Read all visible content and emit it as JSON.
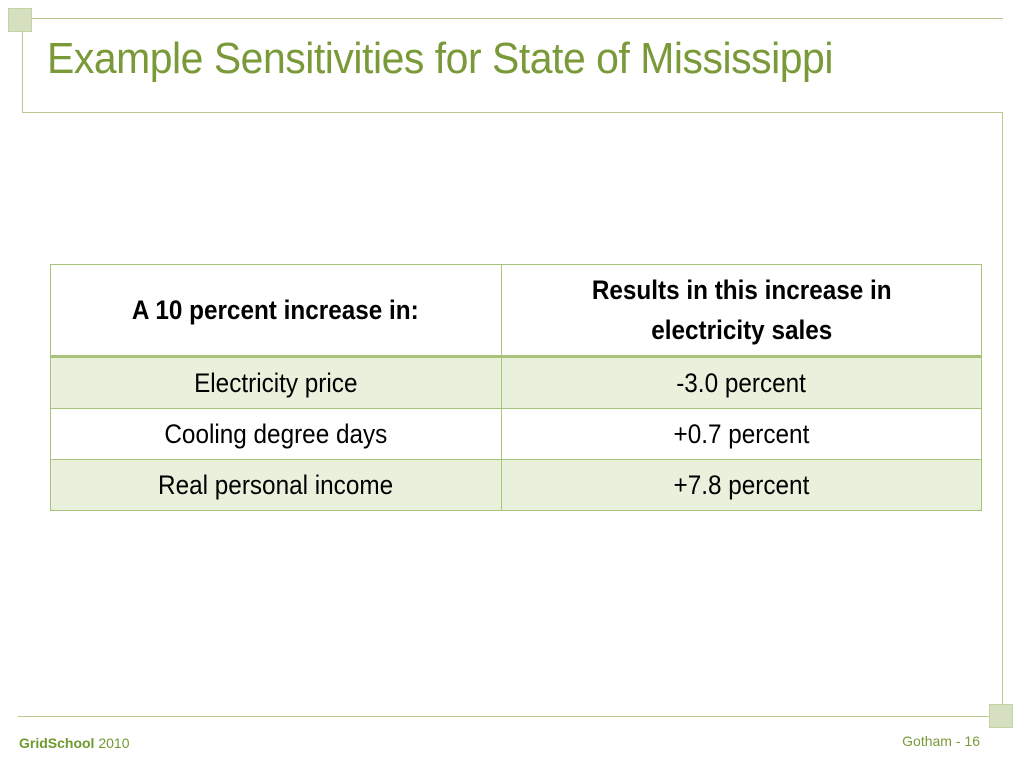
{
  "slide": {
    "title": "Example Sensitivities for State of Mississippi"
  },
  "table": {
    "headers": [
      "A 10 percent increase in:",
      "Results in this increase in electricity sales"
    ],
    "rows": [
      [
        "Electricity price",
        "-3.0 percent"
      ],
      [
        "Cooling degree days",
        "+0.7 percent"
      ],
      [
        "Real personal income",
        "+7.8 percent"
      ]
    ]
  },
  "footer": {
    "brand": "GridSchool",
    "year": "2010",
    "page_label": "Gotham - 16"
  },
  "colors": {
    "title": "#7a9a3a",
    "accent_line": "#b7c98e",
    "table_border": "#a9c47a",
    "row_shade": "#e9f0dc"
  }
}
